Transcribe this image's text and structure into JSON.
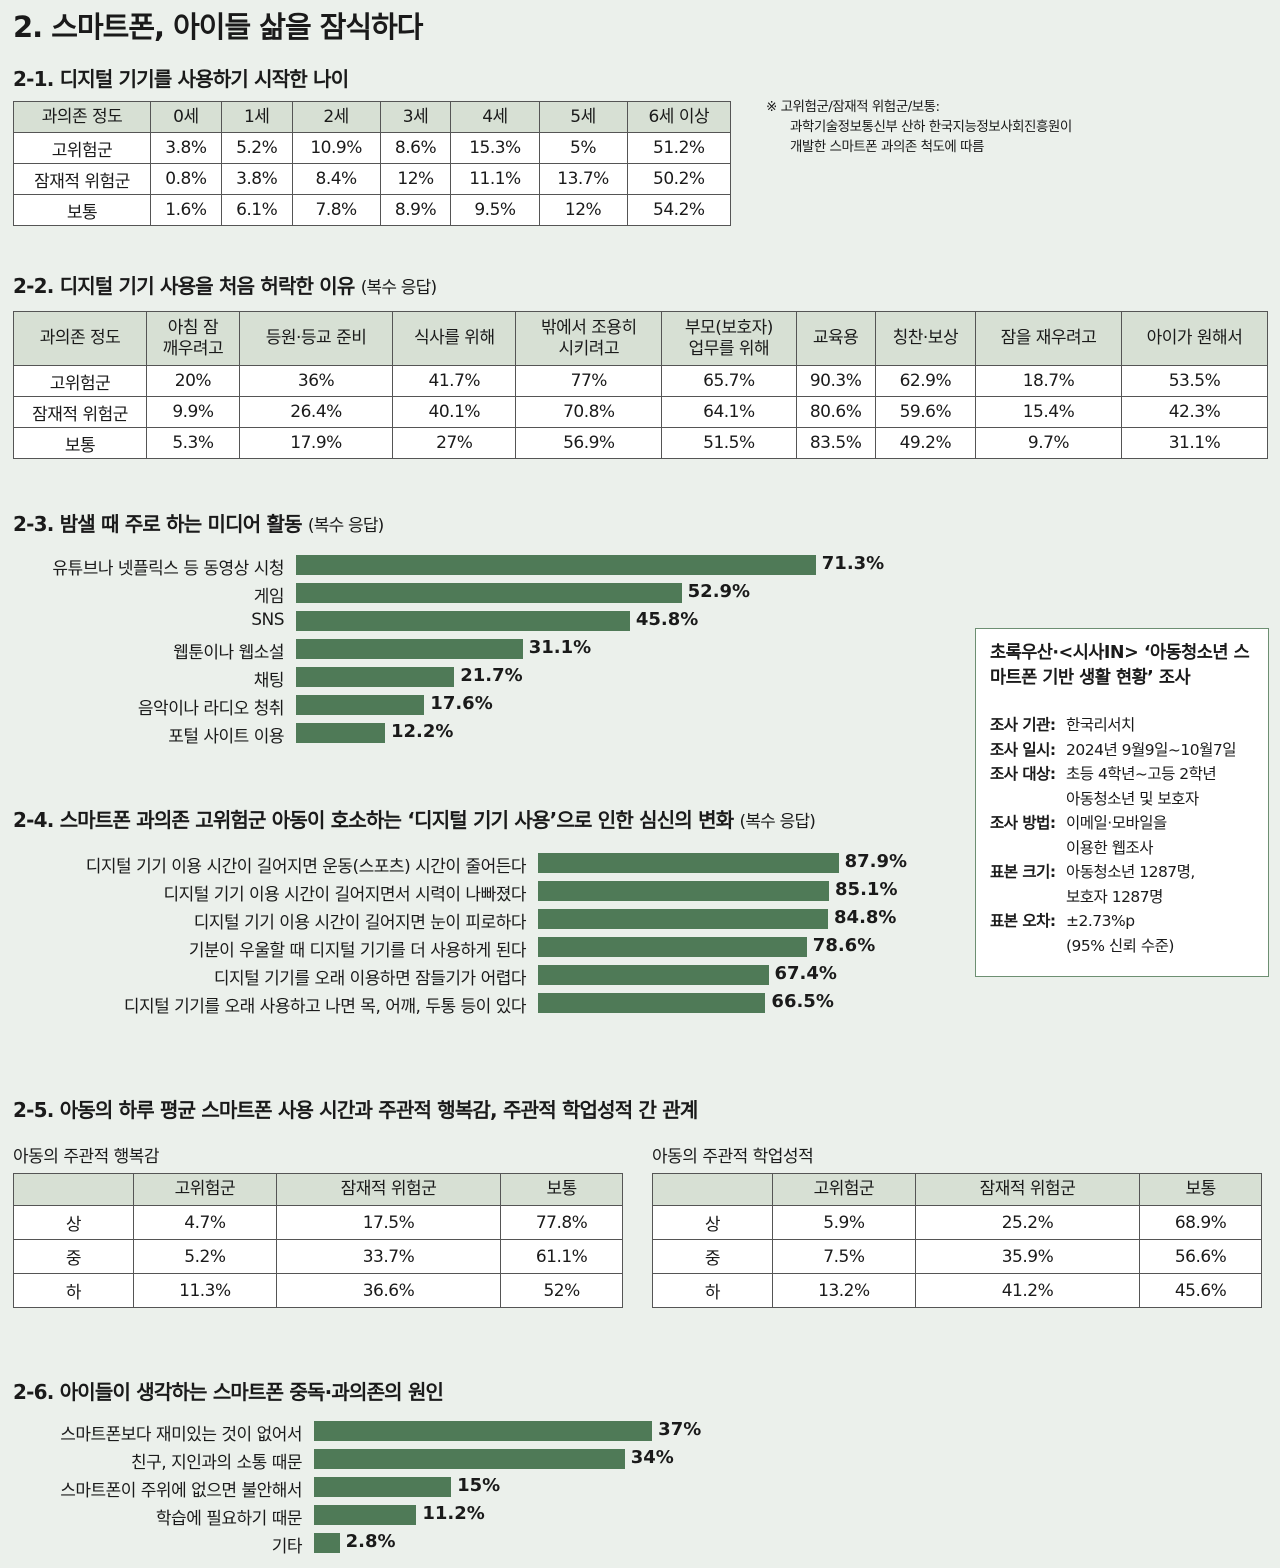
{
  "title": "2. 스마트폰, 아이들 삶을 잠식하다",
  "s1": {
    "heading": "2-1. 디지털 기기를 사용하기 시작한 나이",
    "headers": [
      "과의존 정도",
      "0세",
      "1세",
      "2세",
      "3세",
      "4세",
      "5세",
      "6세 이상"
    ],
    "rows": [
      [
        "고위험군",
        "3.8%",
        "5.2%",
        "10.9%",
        "8.6%",
        "15.3%",
        "5%",
        "51.2%"
      ],
      [
        "잠재적 위험군",
        "0.8%",
        "3.8%",
        "8.4%",
        "12%",
        "11.1%",
        "13.7%",
        "50.2%"
      ],
      [
        "보통",
        "1.6%",
        "6.1%",
        "7.8%",
        "8.9%",
        "9.5%",
        "12%",
        "54.2%"
      ]
    ],
    "note": [
      "※ 고위험군/잠재적 위험군/보통:",
      "과학기술정보통신부 산하 한국지능정보사회진흥원이",
      "개발한 스마트폰 과의존 척도에 따름"
    ]
  },
  "s2": {
    "heading": "2-2. 디지털 기기 사용을 처음 허락한 이유",
    "heading_sub": "(복수 응답)",
    "headers": [
      "과의존 정도",
      "아침 잠\n깨우려고",
      "등원·등교 준비",
      "식사를 위해",
      "밖에서 조용히\n시키려고",
      "부모(보호자)\n업무를 위해",
      "교육용",
      "칭찬·보상",
      "잠을 재우려고",
      "아이가 원해서"
    ],
    "rows": [
      [
        "고위험군",
        "20%",
        "36%",
        "41.7%",
        "77%",
        "65.7%",
        "90.3%",
        "62.9%",
        "18.7%",
        "53.5%"
      ],
      [
        "잠재적 위험군",
        "9.9%",
        "26.4%",
        "40.1%",
        "70.8%",
        "64.1%",
        "80.6%",
        "59.6%",
        "15.4%",
        "42.3%"
      ],
      [
        "보통",
        "5.3%",
        "17.9%",
        "27%",
        "56.9%",
        "51.5%",
        "83.5%",
        "49.2%",
        "9.7%",
        "31.1%"
      ]
    ]
  },
  "s3": {
    "heading": "2-3. 밤샐 때 주로 하는 미디어 활동",
    "heading_sub": "(복수 응답)"
  },
  "s4": {
    "heading": "2-4. 스마트폰 과의존 고위험군 아동이 호소하는 ‘디지털 기기 사용’으로 인한 심신의 변화",
    "heading_sub": "(복수 응답)"
  },
  "s5": {
    "heading": "2-5. 아동의 하루 평균 스마트폰 사용 시간과 주관적 행복감, 주관적 학업성적 간 관계",
    "left": {
      "caption": "아동의 주관적 행복감",
      "headers": [
        "",
        "고위험군",
        "잠재적 위험군",
        "보통"
      ],
      "rows": [
        [
          "상",
          "4.7%",
          "17.5%",
          "77.8%"
        ],
        [
          "중",
          "5.2%",
          "33.7%",
          "61.1%"
        ],
        [
          "하",
          "11.3%",
          "36.6%",
          "52%"
        ]
      ]
    },
    "right": {
      "caption": "아동의 주관적 학업성적",
      "headers": [
        "",
        "고위험군",
        "잠재적 위험군",
        "보통"
      ],
      "rows": [
        [
          "상",
          "5.9%",
          "25.2%",
          "68.9%"
        ],
        [
          "중",
          "7.5%",
          "35.9%",
          "56.6%"
        ],
        [
          "하",
          "13.2%",
          "41.2%",
          "45.6%"
        ]
      ]
    }
  },
  "s6": {
    "heading": "2-6. 아이들이 생각하는 스마트폰 중독·과의존의 원인"
  },
  "survey": {
    "title": "초록우산·<시사IN> ‘아동청소년 스마트폰 기반 생활 현황’ 조사",
    "rows": [
      {
        "k": "조사 기관:",
        "v": [
          "한국리서치"
        ]
      },
      {
        "k": "조사 일시:",
        "v": [
          "2024년 9월9일~10월7일"
        ]
      },
      {
        "k": "조사 대상:",
        "v": [
          "초등 4학년~고등 2학년",
          "아동청소년 및 보호자"
        ]
      },
      {
        "k": "조사 방법:",
        "v": [
          "이메일·모바일을",
          "이용한 웹조사"
        ]
      },
      {
        "k": "표본 크기:",
        "v": [
          "아동청소년 1287명,",
          "보호자 1287명"
        ]
      },
      {
        "k": "표본 오차:",
        "v": [
          "±2.73%p",
          "(95% 신뢰 수준)"
        ]
      }
    ]
  },
  "colors": {
    "bar": "#4f7a57",
    "header": "#d7e0d4",
    "background": "#ebf0eb"
  },
  "chart_data": [
    {
      "type": "bar",
      "orientation": "horizontal",
      "title": "2-3. 밤샐 때 주로 하는 미디어 활동",
      "categories": [
        "유튜브나 넷플릭스 등 동영상 시청",
        "게임",
        "SNS",
        "웹툰이나 웹소설",
        "채팅",
        "음악이나 라디오 청취",
        "포털 사이트 이용"
      ],
      "values": [
        71.3,
        52.9,
        45.8,
        31.1,
        21.7,
        17.6,
        12.2
      ],
      "labels": [
        "71.3%",
        "52.9%",
        "45.8%",
        "31.1%",
        "21.7%",
        "17.6%",
        "12.2%"
      ]
    },
    {
      "type": "bar",
      "orientation": "horizontal",
      "title": "2-4",
      "categories": [
        "디지털 기기 이용 시간이 길어지면 운동(스포츠) 시간이 줄어든다",
        "디지털 기기 이용 시간이 길어지면서 시력이 나빠졌다",
        "디지털 기기 이용 시간이 길어지면 눈이 피로하다",
        "기분이 우울할 때 디지털 기기를 더 사용하게 된다",
        "디지털 기기를 오래 이용하면 잠들기가 어렵다",
        "디지털 기기를 오래 사용하고 나면 목, 어깨, 두통 등이 있다"
      ],
      "values": [
        87.9,
        85.1,
        84.8,
        78.6,
        67.4,
        66.5
      ],
      "labels": [
        "87.9%",
        "85.1%",
        "84.8%",
        "78.6%",
        "67.4%",
        "66.5%"
      ]
    },
    {
      "type": "bar",
      "orientation": "horizontal",
      "title": "2-6",
      "categories": [
        "스마트폰보다 재미있는 것이 없어서",
        "친구, 지인과의 소통 때문",
        "스마트폰이 주위에 없으면 불안해서",
        "학습에 필요하기 때문",
        "기타"
      ],
      "values": [
        37,
        34,
        15,
        11.2,
        2.8
      ],
      "labels": [
        "37%",
        "34%",
        "15%",
        "11.2%",
        "2.8%"
      ]
    }
  ]
}
